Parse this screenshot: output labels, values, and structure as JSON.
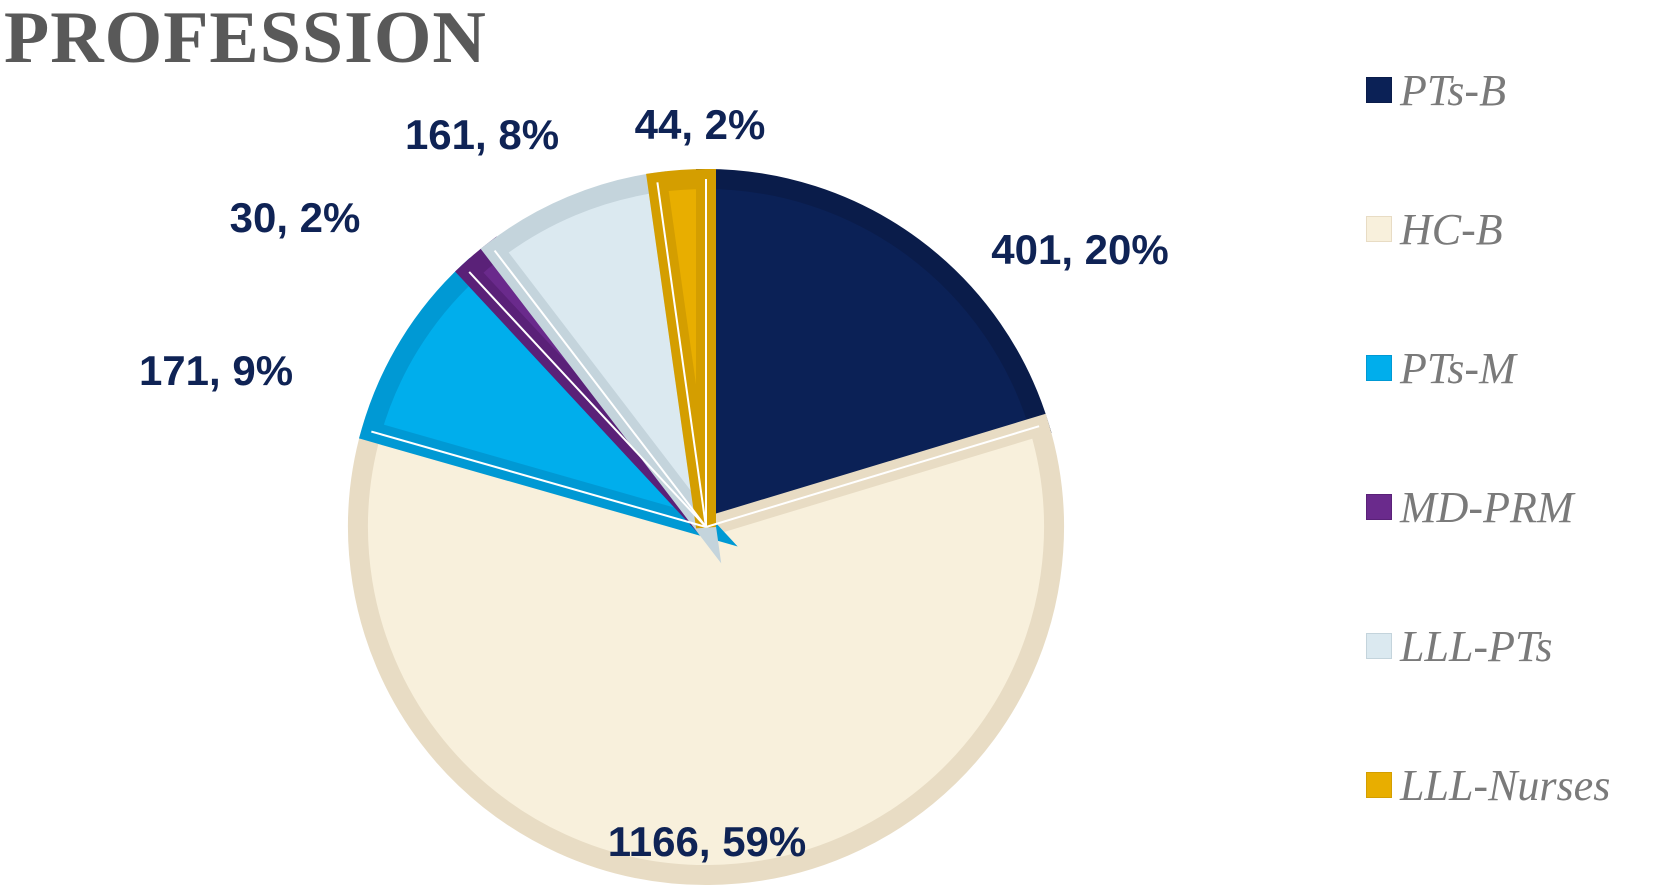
{
  "chart_data": {
    "type": "pie",
    "title": "PROFESSION",
    "start_angle_deg": 0,
    "direction": "clockwise",
    "legend_position": "right",
    "slices": [
      {
        "name": "PTs-B",
        "value": 401,
        "percent": 20,
        "label": "401, 20%",
        "color": "#0b2156",
        "border": "#0a1c4a"
      },
      {
        "name": "HC-B",
        "value": 1166,
        "percent": 59,
        "label": "1166, 59%",
        "color": "#f8f0dc",
        "border": "#e8dcc4"
      },
      {
        "name": "PTs-M",
        "value": 171,
        "percent": 9,
        "label": "171, 9%",
        "color": "#00aeec",
        "border": "#0099d4"
      },
      {
        "name": "MD-PRM",
        "value": 30,
        "percent": 2,
        "label": "30, 2%",
        "color": "#6a2a8c",
        "border": "#5a2178"
      },
      {
        "name": "LLL-PTs",
        "value": 161,
        "percent": 8,
        "label": "161, 8%",
        "color": "#dbe9f0",
        "border": "#c4d4dc"
      },
      {
        "name": "LLL-Nurses",
        "value": 44,
        "percent": 2,
        "label": "44, 2%",
        "color": "#e8ae00",
        "border": "#d49e00"
      }
    ]
  }
}
